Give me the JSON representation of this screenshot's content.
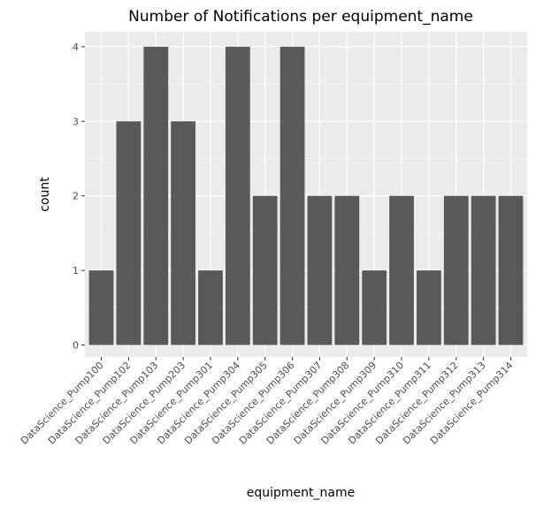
{
  "chart_data": {
    "type": "bar",
    "title": "Number of Notifications per equipment_name",
    "xlabel": "equipment_name",
    "ylabel": "count",
    "categories": [
      "DataScience_Pump100",
      "DataScience_Pump102",
      "DataScience_Pump103",
      "DataScience_Pump203",
      "DataScience_Pump301",
      "DataScience_Pump304",
      "DataScience_Pump305",
      "DataScience_Pump306",
      "DataScience_Pump307",
      "DataScience_Pump308",
      "DataScience_Pump309",
      "DataScience_Pump310",
      "DataScience_Pump311",
      "DataScience_Pump312",
      "DataScience_Pump313",
      "DataScience_Pump314"
    ],
    "values": [
      1,
      3,
      4,
      3,
      1,
      4,
      2,
      4,
      2,
      2,
      1,
      2,
      1,
      2,
      2,
      2
    ],
    "ylim": [
      -0.16,
      4.2
    ],
    "yticks": [
      0,
      1,
      2,
      3,
      4
    ],
    "grid": true,
    "legend": "none",
    "colors": {
      "bar": "#595959",
      "panel_background": "#ebebeb",
      "grid_major": "#ffffff",
      "grid_minor": "#f5f5f5"
    }
  }
}
